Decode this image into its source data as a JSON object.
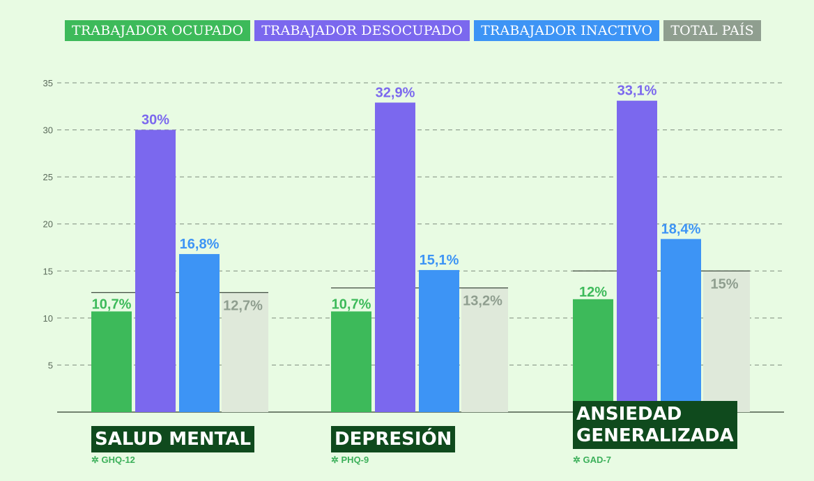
{
  "legend": [
    {
      "label": "TRABAJADOR OCUPADO",
      "color": "#3dba5a"
    },
    {
      "label": "TRABAJADOR DESOCUPADO",
      "color": "#7b68ee"
    },
    {
      "label": "TRABAJADOR INACTIVO",
      "color": "#3d94f5"
    },
    {
      "label": "TOTAL PAÍS",
      "color": "#8f9e8f"
    }
  ],
  "groups": [
    {
      "title": "SALUD MENTAL",
      "note": "✲ GHQ-12"
    },
    {
      "title": "DEPRESIÓN",
      "note": "✲ PHQ-9"
    },
    {
      "title": "ANSIEDAD\nGENERALIZADA",
      "note": "✲ GAD-7"
    }
  ],
  "chart_data": {
    "type": "bar",
    "categories": [
      "SALUD MENTAL",
      "DEPRESIÓN",
      "ANSIEDAD GENERALIZADA"
    ],
    "series": [
      {
        "name": "TRABAJADOR OCUPADO",
        "values": [
          10.7,
          10.7,
          12
        ],
        "labels": [
          "10,7%",
          "10,7%",
          "12%"
        ],
        "color": "#3dba5a"
      },
      {
        "name": "TRABAJADOR DESOCUPADO",
        "values": [
          30,
          32.9,
          33.1
        ],
        "labels": [
          "30%",
          "32,9%",
          "33,1%"
        ],
        "color": "#7b68ee"
      },
      {
        "name": "TRABAJADOR INACTIVO",
        "values": [
          16.8,
          15.1,
          18.4
        ],
        "labels": [
          "16,8%",
          "15,1%",
          "18,4%"
        ],
        "color": "#3d94f5"
      },
      {
        "name": "TOTAL PAÍS",
        "values": [
          12.7,
          13.2,
          15
        ],
        "labels": [
          "12,7%",
          "13,2%",
          "15%"
        ],
        "color": "#8f9e8f",
        "fill": "#dfe9da"
      }
    ],
    "yticks": [
      5,
      10,
      15,
      20,
      25,
      30,
      35
    ],
    "ylim": [
      0,
      35
    ],
    "grid": true
  }
}
